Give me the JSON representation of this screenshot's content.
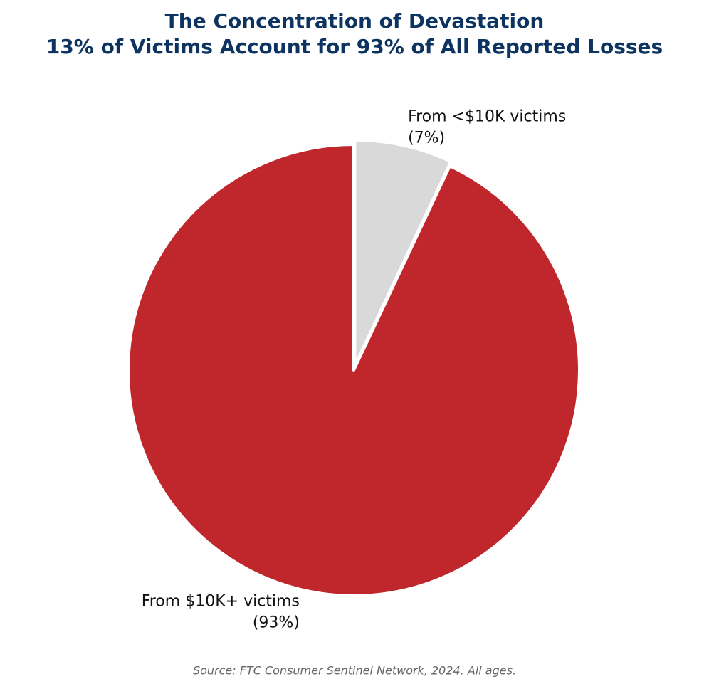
{
  "chart_data": {
    "type": "pie",
    "title": "The Concentration of Devastation",
    "subtitle": "13% of Victims Account for 93% of All Reported Losses",
    "categories": [
      "From <$10K victims",
      "From $10K+ victims"
    ],
    "values": [
      7,
      93
    ],
    "value_labels": [
      "(7%)",
      "(93%)"
    ],
    "colors": [
      "#d9d9d9",
      "#c0272d"
    ],
    "explode": [
      0.02,
      0
    ],
    "start_angle": 90,
    "clockwise": true,
    "source": "Source: FTC Consumer Sentinel Network, 2024. All ages."
  }
}
